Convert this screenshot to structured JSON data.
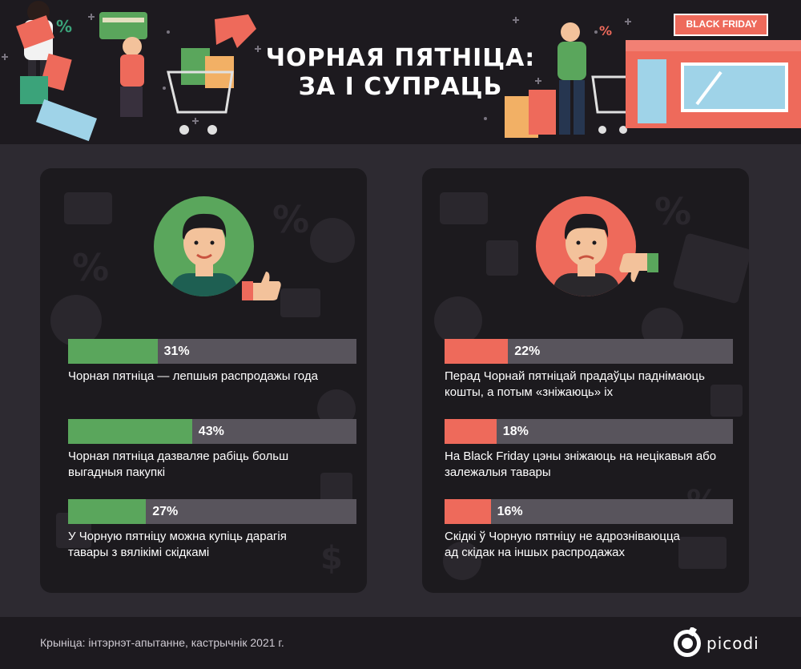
{
  "header": {
    "title_line1": "ЧОРНАЯ ПЯТНІЦА:",
    "title_line2": "ЗА І СУПРАЦЬ",
    "store_sign": "BLACK FRIDAY",
    "tag_percent": "%"
  },
  "pros": {
    "accent_color": "#5aa65c",
    "items": [
      {
        "percent": 31,
        "percent_label": "31%",
        "text_line1": "Чорная пятніца — лепшыя распродажы года",
        "text_line2": ""
      },
      {
        "percent": 43,
        "percent_label": "43%",
        "text_line1": "Чорная пятніца дазваляе рабіць больш",
        "text_line2": "выгадныя пакупкі"
      },
      {
        "percent": 27,
        "percent_label": "27%",
        "text_line1": "У Чорную пятніцу можна купіць дарагія",
        "text_line2": "тавары з вялікімі скідкамі"
      }
    ]
  },
  "cons": {
    "accent_color": "#ee6a5b",
    "items": [
      {
        "percent": 22,
        "percent_label": "22%",
        "text_line1": "Перад Чорнай пятніцай прадаўцы паднімаюць",
        "text_line2": "кошты, а потым «зніжаюць» іх"
      },
      {
        "percent": 18,
        "percent_label": "18%",
        "text_line1": "На Black Friday цэны зніжаюць на нецікавыя або",
        "text_line2": "залежалыя тавары"
      },
      {
        "percent": 16,
        "percent_label": "16%",
        "text_line1": "Скідкі ў Чорную пятніцу не адрозніваюцца",
        "text_line2": "ад скідак на іншых распродажах"
      }
    ]
  },
  "footer": {
    "source": "Крыніца: інтэрнэт-апытанне, кастрычнік 2021 г.",
    "logo": "picodi"
  }
}
